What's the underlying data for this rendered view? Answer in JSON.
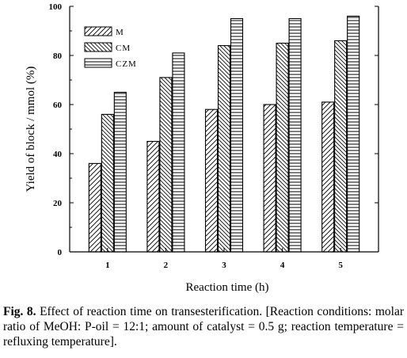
{
  "chart_data": {
    "type": "bar",
    "categories": [
      "1",
      "2",
      "3",
      "4",
      "5"
    ],
    "series": [
      {
        "name": "M",
        "values": [
          36,
          45,
          58,
          60,
          61
        ],
        "pattern": "diagonal-right"
      },
      {
        "name": "CM",
        "values": [
          56,
          71,
          84,
          85,
          86
        ],
        "pattern": "diagonal-left"
      },
      {
        "name": "CZM",
        "values": [
          65,
          81,
          95,
          95,
          96
        ],
        "pattern": "horizontal"
      }
    ],
    "xlabel": "Reaction time (h)",
    "ylabel": "Yield of block / mmol (%)",
    "ylim": [
      0,
      100
    ],
    "yticks": [
      "0",
      "20",
      "40",
      "60",
      "80",
      "100"
    ],
    "legend_position": "top-left",
    "grid": false
  },
  "caption": {
    "label": "Fig. 8.",
    "text": " Effect of reaction time on transesterification. [Reaction conditions: molar ratio of MeOH: P-oil = 12:1; amount of catalyst = 0.5 g; reaction temperature = refluxing temperature]."
  }
}
